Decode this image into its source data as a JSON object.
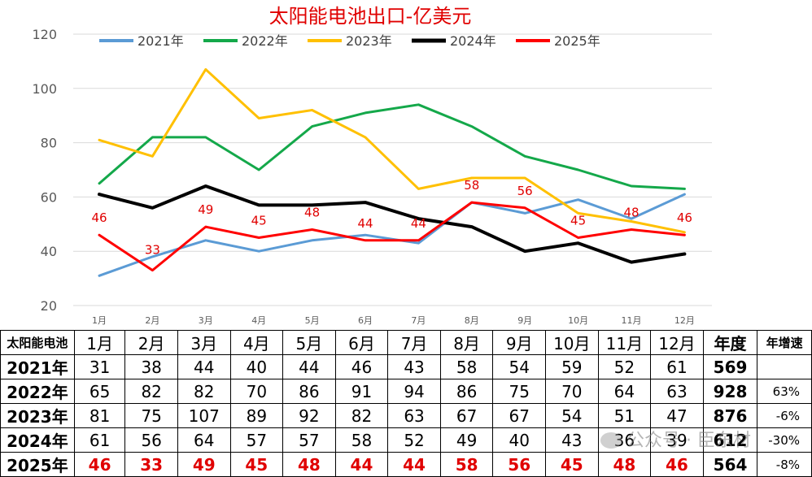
{
  "chart_data": {
    "type": "line",
    "title": "太阳能电池出口-亿美元",
    "categories": [
      "1月",
      "2月",
      "3月",
      "4月",
      "5月",
      "6月",
      "7月",
      "8月",
      "9月",
      "10月",
      "11月",
      "12月"
    ],
    "ylim": [
      20,
      120
    ],
    "yticks": [
      20,
      40,
      60,
      80,
      100,
      120
    ],
    "grid": true,
    "legend_position": "top",
    "series": [
      {
        "name": "2021年",
        "color": "#5b9bd5",
        "width": 3,
        "values": [
          31,
          38,
          44,
          40,
          44,
          46,
          43,
          58,
          54,
          59,
          52,
          61
        ]
      },
      {
        "name": "2022年",
        "color": "#14a84a",
        "width": 3,
        "values": [
          65,
          82,
          82,
          70,
          86,
          91,
          94,
          86,
          75,
          70,
          64,
          63
        ]
      },
      {
        "name": "2023年",
        "color": "#ffc000",
        "width": 3,
        "values": [
          81,
          75,
          107,
          89,
          92,
          82,
          63,
          67,
          67,
          54,
          51,
          47
        ]
      },
      {
        "name": "2024年",
        "color": "#000000",
        "width": 4,
        "values": [
          61,
          56,
          64,
          57,
          57,
          58,
          52,
          49,
          40,
          43,
          36,
          39
        ]
      },
      {
        "name": "2025年",
        "color": "#ff0000",
        "width": 3,
        "values": [
          46,
          33,
          49,
          45,
          48,
          44,
          44,
          58,
          56,
          45,
          48,
          46
        ]
      }
    ],
    "data_labels": {
      "series": "2025年",
      "color": "#e00000",
      "labels": [
        "46",
        "33",
        "49",
        "45",
        "48",
        "44",
        "44",
        "58",
        "56",
        "45",
        "48",
        "46"
      ]
    }
  },
  "table": {
    "corner": "太阳能电池",
    "months": [
      "1月",
      "2月",
      "3月",
      "4月",
      "5月",
      "6月",
      "7月",
      "8月",
      "9月",
      "10月",
      "11月",
      "12月"
    ],
    "total_header": "年度",
    "growth_header": "年增速",
    "rows": [
      {
        "year": "2021年",
        "values": [
          "31",
          "38",
          "44",
          "40",
          "44",
          "46",
          "43",
          "58",
          "54",
          "59",
          "52",
          "61"
        ],
        "total": "569",
        "growth": ""
      },
      {
        "year": "2022年",
        "values": [
          "65",
          "82",
          "82",
          "70",
          "86",
          "91",
          "94",
          "86",
          "75",
          "70",
          "64",
          "63"
        ],
        "total": "928",
        "growth": "63%"
      },
      {
        "year": "2023年",
        "values": [
          "81",
          "75",
          "107",
          "89",
          "92",
          "82",
          "63",
          "67",
          "67",
          "54",
          "51",
          "47"
        ],
        "total": "876",
        "growth": "-6%"
      },
      {
        "year": "2024年",
        "values": [
          "61",
          "56",
          "64",
          "57",
          "57",
          "58",
          "52",
          "49",
          "40",
          "43",
          "36",
          "39"
        ],
        "total": "612",
        "growth": "-30%"
      },
      {
        "year": "2025年",
        "values": [
          "46",
          "33",
          "49",
          "45",
          "48",
          "44",
          "44",
          "58",
          "56",
          "45",
          "48",
          "46"
        ],
        "total": "564",
        "growth": "-8%"
      }
    ]
  },
  "watermark": "公众号 · 臣东材"
}
